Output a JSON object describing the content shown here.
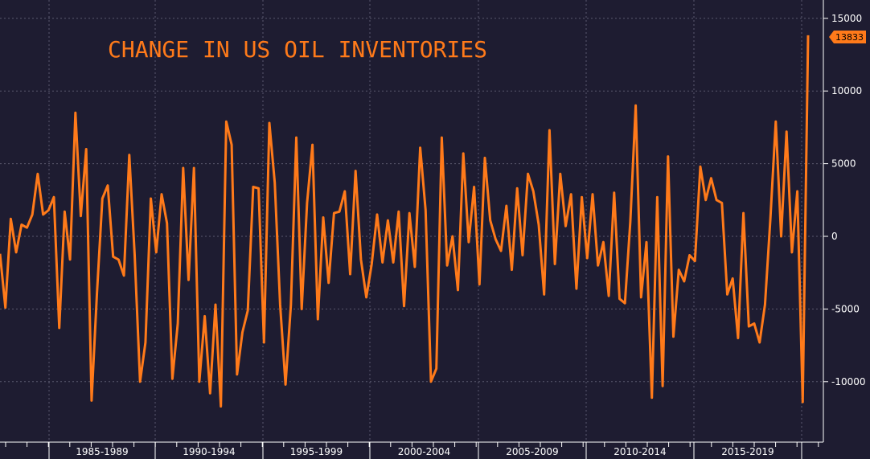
{
  "chart_data": {
    "type": "line",
    "title": "CHANGE IN US OIL INVENTORIES",
    "xlabel": "",
    "ylabel": "",
    "ylim": [
      -14000,
      15500
    ],
    "y_ticks": [
      15000,
      10000,
      5000,
      0,
      -5000,
      -10000
    ],
    "x_tick_labels": [
      "1985-1989",
      "1990-1994",
      "1995-1999",
      "2000-2004",
      "2005-2009",
      "2010-2014",
      "2015-2019"
    ],
    "grid": true,
    "last_value_label": "13833",
    "colors": {
      "line": "#ff7a1a",
      "background": "#1e1c31",
      "axis_text": "#ffffff",
      "grid": "#8a8aa0"
    },
    "series": [
      {
        "values": [
          -1200,
          -4900,
          1200,
          -1100,
          800,
          600,
          1500,
          4300,
          1500,
          1800,
          2700,
          -6300,
          1700,
          -1600,
          8500,
          1400,
          6000,
          -11300,
          -3900,
          2600,
          3500,
          -1400,
          -1600,
          -2700,
          5600,
          -1300,
          -10000,
          -7300,
          2600,
          -1100,
          2900,
          900,
          -9800,
          -6000,
          4700,
          -3000,
          4700,
          -10000,
          -5500,
          -10800,
          -4700,
          -11700,
          7900,
          6300,
          -9500,
          -6600,
          -5100,
          3400,
          3300,
          -7300,
          7800,
          3700,
          -4700,
          -10200,
          -4700,
          6800,
          -5000,
          2300,
          6300,
          -5700,
          1300,
          -3200,
          1600,
          1700,
          3100,
          -2600,
          4500,
          -1600,
          -4200,
          -1900,
          1500,
          -1800,
          1100,
          -1800,
          1700,
          -4800,
          1600,
          -2100,
          6100,
          1800,
          -10000,
          -9100,
          6800,
          -2000,
          0,
          -3700,
          5700,
          -400,
          3400,
          -3300,
          5400,
          1100,
          -200,
          -1000,
          2100,
          -2300,
          3300,
          -1300,
          4300,
          3100,
          800,
          -4000,
          7300,
          -1900,
          4300,
          700,
          2900,
          -3600,
          2700,
          -1500,
          2900,
          -2000,
          -400,
          -4100,
          3000,
          -4300,
          -4600,
          1000,
          9000,
          -4200,
          -400,
          -11100,
          2700,
          -10300,
          5500,
          -6900,
          -2300,
          -3100,
          -1300,
          -1700,
          4800,
          2500,
          4000,
          2500,
          2300,
          -4000,
          -2900,
          -7000,
          1600,
          -6200,
          -6000,
          -7300,
          -4700,
          1200,
          7900,
          0,
          7200,
          -1100,
          3100,
          -11400,
          13833
        ]
      }
    ]
  }
}
